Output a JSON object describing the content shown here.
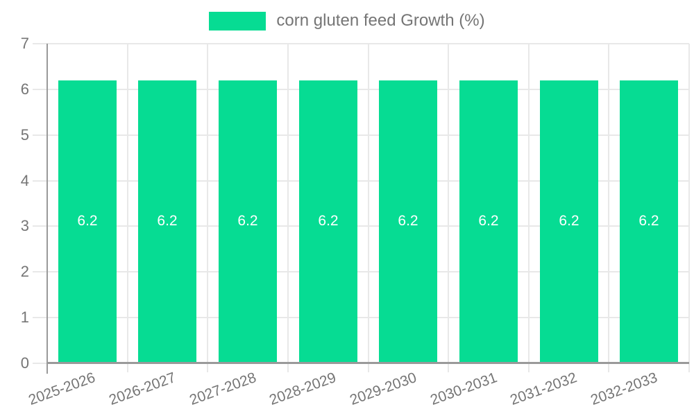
{
  "chart_data": {
    "type": "bar",
    "title": "",
    "legend_label": "corn gluten feed Growth (%)",
    "legend_position": "top-center",
    "categories": [
      "2025-2026",
      "2026-2027",
      "2027-2028",
      "2028-2029",
      "2029-2030",
      "2030-2031",
      "2031-2032",
      "2032-2033"
    ],
    "values": [
      6.2,
      6.2,
      6.2,
      6.2,
      6.2,
      6.2,
      6.2,
      6.2
    ],
    "value_labels": [
      "6.2",
      "6.2",
      "6.2",
      "6.2",
      "6.2",
      "6.2",
      "6.2",
      "6.2"
    ],
    "xlabel": "",
    "ylabel": "",
    "ylim": [
      0,
      7
    ],
    "yticks": [
      0,
      1,
      2,
      3,
      4,
      5,
      6,
      7
    ],
    "grid": true,
    "x_label_rotation_deg": -20,
    "colors": {
      "bar": "#06DC93",
      "grid": "#e8e8e8",
      "axis": "#9a9a9a",
      "text": "#757575",
      "value_label": "#ffffff"
    }
  }
}
